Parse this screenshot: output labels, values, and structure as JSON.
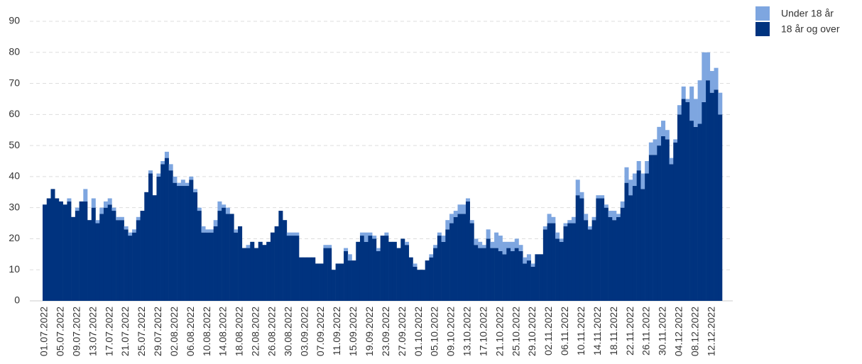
{
  "chart_data": {
    "type": "stacked_bar",
    "categories": [
      "01.07.2022",
      null,
      null,
      null,
      "05.07.2022",
      null,
      null,
      null,
      "09.07.2022",
      null,
      null,
      null,
      "13.07.2022",
      null,
      null,
      null,
      "17.07.2022",
      null,
      null,
      null,
      "21.07.2022",
      null,
      null,
      null,
      "25.07.2022",
      null,
      null,
      null,
      "29.07.2022",
      null,
      null,
      null,
      "02.08.2022",
      null,
      null,
      null,
      "06.08.2022",
      null,
      null,
      null,
      "10.08.2022",
      null,
      null,
      null,
      "14.08.2022",
      null,
      null,
      null,
      "18.08.2022",
      null,
      null,
      null,
      "22.08.2022",
      null,
      null,
      null,
      "26.08.2022",
      null,
      null,
      null,
      "30.08.2022",
      null,
      null,
      null,
      "03.09.2022",
      null,
      null,
      null,
      "07.09.2022",
      null,
      null,
      null,
      "11.09.2022",
      null,
      null,
      null,
      "15.09.2022",
      null,
      null,
      null,
      "19.09.2022",
      null,
      null,
      null,
      "23.09.2022",
      null,
      null,
      null,
      "27.09.2022",
      null,
      null,
      null,
      "01.10.2022",
      null,
      null,
      null,
      "05.10.2022",
      null,
      null,
      null,
      "09.10.2022",
      null,
      null,
      null,
      "13.10.2022",
      null,
      null,
      null,
      "17.10.2022",
      null,
      null,
      null,
      "21.10.2022",
      null,
      null,
      null,
      "25.10.2022",
      null,
      null,
      null,
      "29.10.2022",
      null,
      null,
      null,
      "02.11.2022",
      null,
      null,
      null,
      "06.11.2022",
      null,
      null,
      null,
      "10.11.2022",
      null,
      null,
      null,
      "14.11.2022",
      null,
      null,
      null,
      "18.11.2022",
      null,
      null,
      null,
      "22.11.2022",
      null,
      null,
      null,
      "26.11.2022",
      null,
      null,
      null,
      "30.11.2022",
      null,
      null,
      null,
      "04.12.2022",
      null,
      null,
      null,
      "08.12.2022",
      null,
      null,
      null,
      "12.12.2022",
      null,
      null
    ],
    "series": [
      {
        "name": "Under 18 år",
        "color": "#7ea6e0",
        "values": [
          0,
          0,
          0,
          0,
          0,
          0,
          1,
          0,
          1,
          0,
          4,
          0,
          3,
          1,
          2,
          2,
          2,
          1,
          1,
          1,
          1,
          1,
          1,
          1,
          0,
          0,
          1,
          0,
          1,
          1,
          2,
          2,
          2,
          1,
          2,
          1,
          1,
          1,
          1,
          2,
          1,
          1,
          2,
          3,
          1,
          2,
          0,
          1,
          0,
          0,
          1,
          0,
          0,
          0,
          0,
          0,
          0,
          0,
          0,
          0,
          1,
          1,
          1,
          0,
          0,
          0,
          0,
          0,
          0,
          1,
          1,
          0,
          0,
          0,
          1,
          2,
          0,
          0,
          1,
          3,
          1,
          1,
          1,
          0,
          1,
          0,
          0,
          0,
          0,
          1,
          0,
          1,
          0,
          0,
          0,
          1,
          1,
          1,
          2,
          3,
          3,
          2,
          3,
          3,
          1,
          1,
          2,
          2,
          1,
          3,
          2,
          5,
          5,
          4,
          2,
          3,
          3,
          2,
          2,
          2,
          1,
          0,
          0,
          1,
          3,
          2,
          2,
          1,
          1,
          1,
          2,
          5,
          2,
          2,
          1,
          1,
          1,
          1,
          1,
          2,
          3,
          1,
          2,
          5,
          5,
          4,
          3,
          5,
          4,
          4,
          5,
          6,
          5,
          3,
          2,
          1,
          3,
          4,
          1,
          11,
          9,
          14,
          16,
          9,
          7,
          7,
          7
        ]
      },
      {
        "name": "18 år og over",
        "color": "#00337f",
        "values": [
          31,
          33,
          36,
          33,
          32,
          31,
          32,
          27,
          29,
          32,
          32,
          26,
          30,
          25,
          28,
          30,
          31,
          29,
          26,
          26,
          23,
          21,
          22,
          26,
          29,
          35,
          41,
          34,
          40,
          44,
          46,
          42,
          38,
          37,
          37,
          37,
          39,
          35,
          29,
          22,
          22,
          22,
          24,
          29,
          30,
          28,
          28,
          22,
          24,
          17,
          17,
          19,
          17,
          19,
          18,
          19,
          22,
          24,
          29,
          26,
          21,
          21,
          21,
          14,
          14,
          14,
          14,
          12,
          12,
          17,
          17,
          10,
          12,
          12,
          16,
          13,
          13,
          19,
          21,
          19,
          21,
          20,
          16,
          21,
          21,
          19,
          19,
          17,
          20,
          18,
          14,
          11,
          10,
          10,
          13,
          14,
          17,
          21,
          19,
          23,
          25,
          27,
          28,
          28,
          32,
          25,
          18,
          17,
          17,
          20,
          17,
          17,
          16,
          15,
          17,
          16,
          17,
          16,
          12,
          13,
          11,
          15,
          15,
          23,
          25,
          25,
          20,
          19,
          24,
          25,
          25,
          34,
          33,
          26,
          23,
          26,
          33,
          33,
          30,
          27,
          26,
          27,
          30,
          38,
          34,
          37,
          42,
          36,
          41,
          47,
          47,
          50,
          53,
          52,
          44,
          51,
          60,
          65,
          64,
          58,
          56,
          57,
          64,
          71,
          67,
          68,
          60
        ]
      }
    ],
    "ylim": [
      0,
      90
    ],
    "yticks": [
      0,
      10,
      20,
      30,
      40,
      50,
      60,
      70,
      80,
      90
    ],
    "grid": true,
    "legend": "top-right"
  }
}
